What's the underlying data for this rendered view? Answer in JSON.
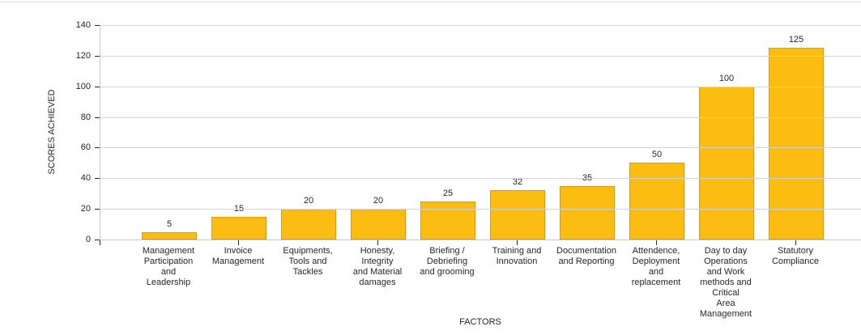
{
  "window": {
    "background": "#ffffff",
    "top_border_color": "#d9d9d9"
  },
  "chart_data": {
    "type": "bar",
    "title": "",
    "xlabel": "FACTORS",
    "ylabel": "SCORES ACHIEVED",
    "categories": [
      "Management\nParticipation\nand\nLeadership",
      "Invoice\nManagement",
      "Equipments,\nTools and\nTackles",
      "Honesty,\nIntegrity\nand Material\ndamages",
      "Briefing /\nDebriefing\nand grooming",
      "Training and\nInnovation",
      "Documentation\nand Reporting",
      "Attendence,\nDeployment\nand\nreplacement",
      "Day to day\nOperations\nand Work\nmethods and\nCritical\nArea\nManagement",
      "Statutory\nCompliance"
    ],
    "values": [
      5,
      15,
      20,
      20,
      25,
      32,
      35,
      50,
      100,
      125
    ],
    "value_labels_shown": true,
    "ylim": [
      0,
      140
    ],
    "yticks": [
      0,
      20,
      40,
      60,
      80,
      100,
      120,
      140
    ],
    "grid": "horizontal",
    "legend": "none",
    "bar_color": "#fcbd13",
    "bar_border_color": "#e0980f",
    "grid_color": "#d4d4d4",
    "axis_color": "#c6c6c6",
    "tick_color": "#262626",
    "text_color": "#262626"
  }
}
